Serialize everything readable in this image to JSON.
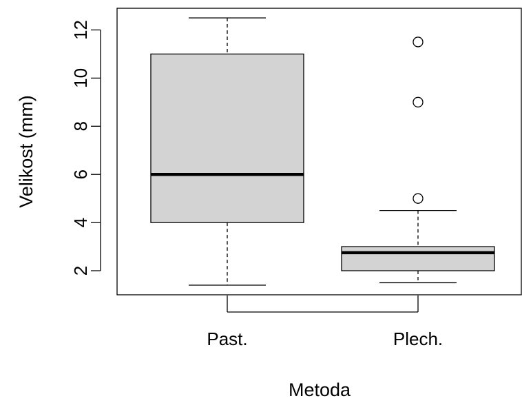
{
  "chart_data": {
    "type": "boxplot",
    "title": "",
    "xlabel": "Metoda",
    "ylabel": "Velikost (mm)",
    "ylim": [
      1.0,
      12.9
    ],
    "yticks": [
      2,
      4,
      6,
      8,
      10,
      12
    ],
    "yticklabels": [
      "2",
      "4",
      "6",
      "8",
      "10",
      "12"
    ],
    "categories": [
      "Past.",
      "Plech."
    ],
    "boxes": [
      {
        "category": "Past.",
        "whisker_low": 1.4,
        "q1": 4.0,
        "median": 6.0,
        "q3": 11.0,
        "whisker_high": 12.5,
        "outliers": []
      },
      {
        "category": "Plech.",
        "whisker_low": 1.5,
        "q1": 2.0,
        "median": 2.75,
        "q3": 3.0,
        "whisker_high": 4.5,
        "outliers": [
          5.0,
          9.0,
          11.5
        ]
      }
    ],
    "box_color": "#d3d3d3",
    "grid": false,
    "legend": "none"
  }
}
